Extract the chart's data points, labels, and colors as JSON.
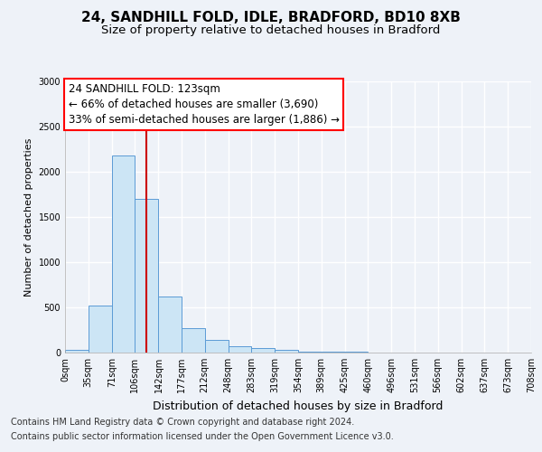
{
  "title1": "24, SANDHILL FOLD, IDLE, BRADFORD, BD10 8XB",
  "title2": "Size of property relative to detached houses in Bradford",
  "xlabel": "Distribution of detached houses by size in Bradford",
  "ylabel": "Number of detached properties",
  "annotation_line1": "24 SANDHILL FOLD: 123sqm",
  "annotation_line2": "← 66% of detached houses are smaller (3,690)",
  "annotation_line3": "33% of semi-detached houses are larger (1,886) →",
  "footnote1": "Contains HM Land Registry data © Crown copyright and database right 2024.",
  "footnote2": "Contains public sector information licensed under the Open Government Licence v3.0.",
  "bin_edges": [
    0,
    35,
    71,
    106,
    142,
    177,
    212,
    248,
    283,
    319,
    354,
    389,
    425,
    460,
    496,
    531,
    566,
    602,
    637,
    673,
    708
  ],
  "bar_heights": [
    30,
    520,
    2180,
    1700,
    620,
    270,
    140,
    75,
    50,
    30,
    15,
    10,
    7,
    5,
    4,
    3,
    2,
    2,
    1,
    1
  ],
  "property_size": 123,
  "bar_color": "#cce5f5",
  "bar_edge_color": "#5b9bd5",
  "line_color": "#cc0000",
  "background_color": "#eef2f8",
  "grid_color": "#ffffff",
  "ylim": [
    0,
    3000
  ],
  "yticks": [
    0,
    500,
    1000,
    1500,
    2000,
    2500,
    3000
  ],
  "title1_fontsize": 11,
  "title2_fontsize": 9.5,
  "xlabel_fontsize": 9,
  "ylabel_fontsize": 8,
  "annotation_fontsize": 8.5,
  "tick_fontsize": 7,
  "footnote_fontsize": 7
}
